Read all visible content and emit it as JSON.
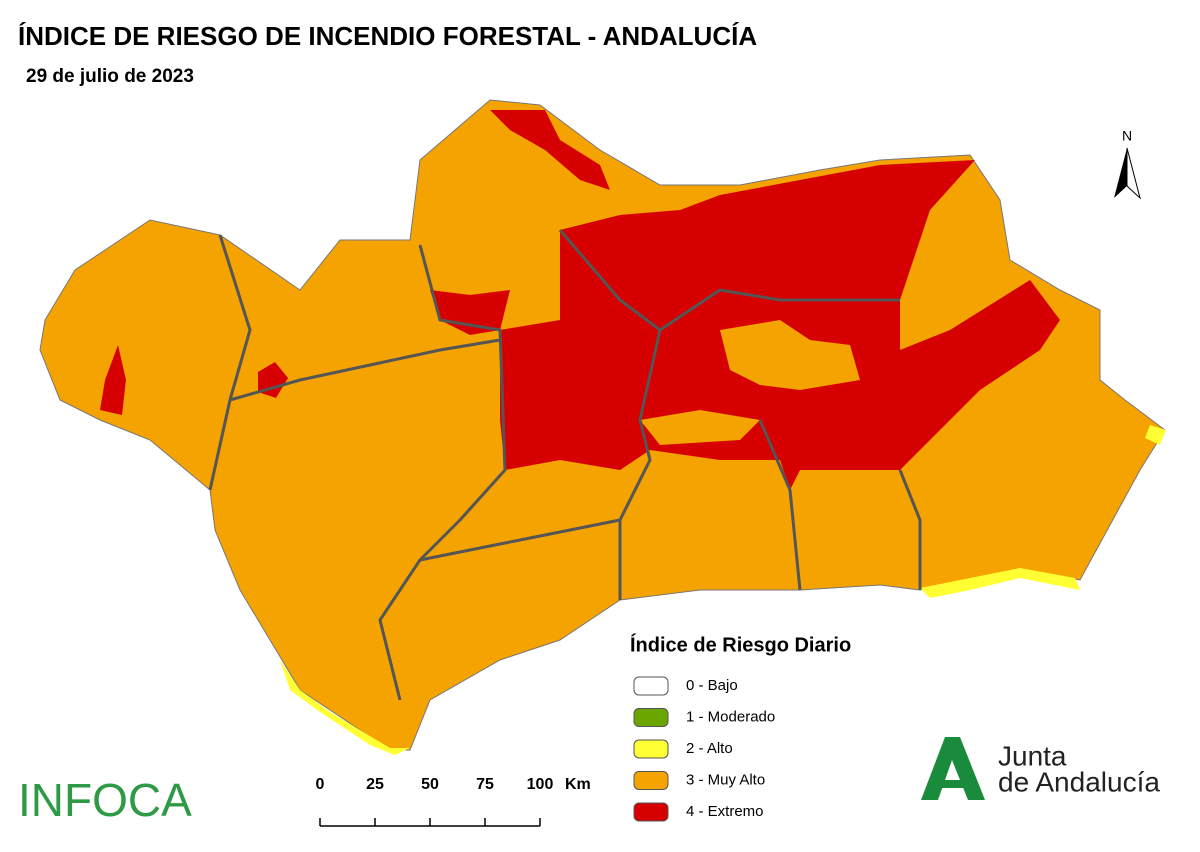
{
  "header": {
    "title": "ÍNDICE DE RIESGO DE INCENDIO FORESTAL - ANDALUCÍA",
    "date": "29 de julio de 2023"
  },
  "legend": {
    "title": "Índice de Riesgo Diario",
    "items": [
      {
        "label": "0 - Bajo",
        "color": "#ffffff"
      },
      {
        "label": "1 - Moderado",
        "color": "#6aa500"
      },
      {
        "label": "2 - Alto",
        "color": "#ffff33"
      },
      {
        "label": "3 - Muy Alto",
        "color": "#f5a300"
      },
      {
        "label": "4 - Extremo",
        "color": "#d70000"
      }
    ]
  },
  "scale_bar": {
    "ticks": [
      0,
      25,
      50,
      75,
      100
    ],
    "unit": "Km"
  },
  "north": "N",
  "logos": {
    "infoca": "INFOCA",
    "junta": [
      "Junta",
      "de Andalucía"
    ]
  }
}
